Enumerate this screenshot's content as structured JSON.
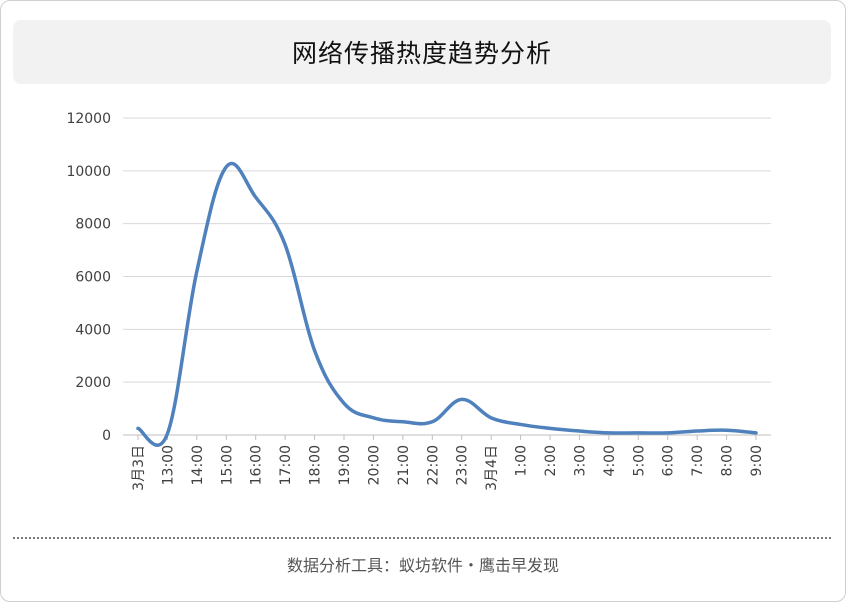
{
  "title": "网络传播热度趋势分析",
  "footer": "数据分析工具：蚁坊软件・鹰击早发现",
  "chart_data": {
    "type": "line",
    "title": "网络传播热度趋势分析",
    "xlabel": "",
    "ylabel": "",
    "categories": [
      "3月3日",
      "13:00",
      "14:00",
      "15:00",
      "16:00",
      "17:00",
      "18:00",
      "19:00",
      "20:00",
      "21:00",
      "22:00",
      "23:00",
      "3月4日",
      "1:00",
      "2:00",
      "3:00",
      "4:00",
      "5:00",
      "6:00",
      "7:00",
      "8:00",
      "9:00"
    ],
    "series": [
      {
        "color": "#4f81bd",
        "values": [
          250,
          50,
          6200,
          10150,
          9000,
          7200,
          3200,
          1200,
          650,
          500,
          500,
          1350,
          650,
          400,
          250,
          150,
          80,
          80,
          80,
          150,
          180,
          80
        ]
      }
    ],
    "ylim": [
      0,
      12000
    ],
    "yticks": [
      0,
      2000,
      4000,
      6000,
      8000,
      10000,
      12000
    ],
    "grid": true,
    "legend": "none",
    "colors": {
      "line": "#4f81bd",
      "grid": "#d9d9d9",
      "axis": "#bfbfbf",
      "text": "#404040"
    }
  }
}
